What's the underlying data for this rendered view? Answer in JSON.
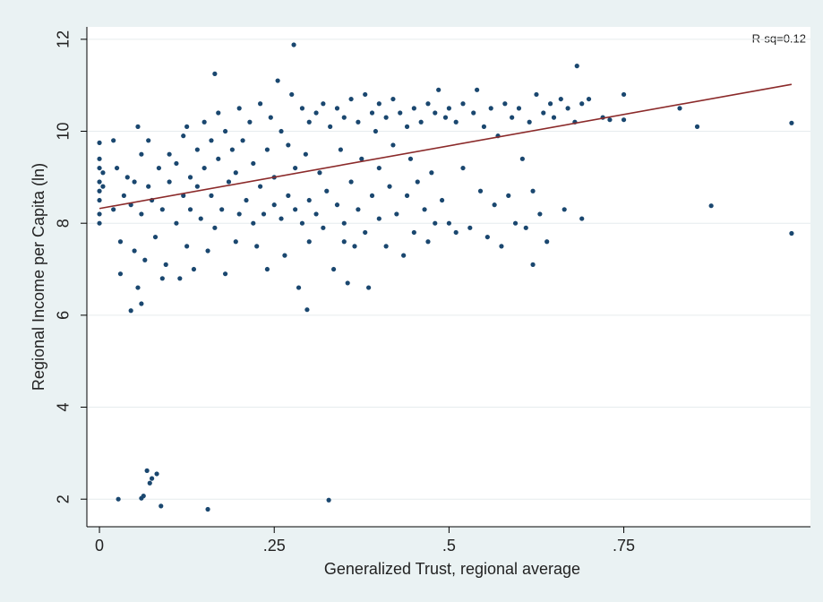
{
  "chart_data": {
    "type": "scatter",
    "xlabel": "Generalized Trust, regional average",
    "ylabel": "Regional Income per Capita (ln)",
    "annotation": "R-sq=0.12",
    "color": "#1a476f",
    "xlim": [
      -0.018,
      1.017
    ],
    "ylim": [
      1.4,
      12.27
    ],
    "xticks": [
      0,
      {
        "value": 0.25,
        "label": ".25"
      },
      {
        "value": 0.5,
        "label": ".5"
      },
      {
        "value": 0.75,
        "label": ".75"
      }
    ],
    "yticks": [
      2,
      4,
      6,
      8,
      10,
      12
    ],
    "grid": true,
    "fit_line": {
      "x": [
        0,
        0.99
      ],
      "y": [
        8.32,
        11.02
      ],
      "color": "#8b2a2a"
    },
    "x": [
      0.027,
      0.06,
      0.063,
      0.068,
      0.075,
      0.072,
      0.082,
      0.088,
      0.155,
      0.328,
      0.297,
      0.045,
      0.06,
      0.165,
      0.278,
      0.683,
      0.855,
      0.875,
      0.99,
      0.99,
      0.83,
      0.75,
      0.62,
      0,
      0,
      0,
      0,
      0,
      0,
      0,
      0,
      0.005,
      0.005,
      0.02,
      0.025,
      0.02,
      0.03,
      0.03,
      0.035,
      0.04,
      0.045,
      0.05,
      0.05,
      0.055,
      0.055,
      0.06,
      0.06,
      0.065,
      0.07,
      0.07,
      0.075,
      0.08,
      0.085,
      0.09,
      0.09,
      0.095,
      0.1,
      0.1,
      0.11,
      0.11,
      0.115,
      0.12,
      0.12,
      0.125,
      0.13,
      0.13,
      0.135,
      0.14,
      0.14,
      0.145,
      0.15,
      0.15,
      0.155,
      0.16,
      0.16,
      0.165,
      0.17,
      0.175,
      0.18,
      0.18,
      0.185,
      0.19,
      0.195,
      0.2,
      0.2,
      0.195,
      0.17,
      0.125,
      0.205,
      0.21,
      0.215,
      0.22,
      0.22,
      0.225,
      0.23,
      0.23,
      0.235,
      0.24,
      0.24,
      0.245,
      0.25,
      0.25,
      0.255,
      0.26,
      0.26,
      0.265,
      0.27,
      0.27,
      0.275,
      0.28,
      0.28,
      0.285,
      0.29,
      0.29,
      0.295,
      0.3,
      0.3,
      0.3,
      0.31,
      0.31,
      0.315,
      0.32,
      0.32,
      0.325,
      0.33,
      0.335,
      0.34,
      0.34,
      0.345,
      0.35,
      0.35,
      0.355,
      0.36,
      0.36,
      0.365,
      0.37,
      0.37,
      0.375,
      0.38,
      0.38,
      0.385,
      0.39,
      0.39,
      0.395,
      0.4,
      0.4,
      0.4,
      0.35,
      0.41,
      0.41,
      0.415,
      0.42,
      0.42,
      0.425,
      0.43,
      0.435,
      0.44,
      0.44,
      0.445,
      0.45,
      0.45,
      0.455,
      0.46,
      0.465,
      0.47,
      0.47,
      0.475,
      0.48,
      0.48,
      0.485,
      0.49,
      0.495,
      0.5,
      0.5,
      0.51,
      0.51,
      0.52,
      0.52,
      0.53,
      0.535,
      0.54,
      0.545,
      0.55,
      0.555,
      0.56,
      0.565,
      0.57,
      0.575,
      0.58,
      0.585,
      0.59,
      0.595,
      0.6,
      0.605,
      0.61,
      0.615,
      0.62,
      0.625,
      0.63,
      0.635,
      0.64,
      0.645,
      0.65,
      0.66,
      0.665,
      0.67,
      0.68,
      0.69,
      0.69,
      0.7,
      0.72,
      0.73,
      0.75
    ],
    "values": [
      2.0,
      2.02,
      2.07,
      2.62,
      2.45,
      2.35,
      2.55,
      1.85,
      1.78,
      1.98,
      6.12,
      6.1,
      6.25,
      11.25,
      11.88,
      11.42,
      10.1,
      8.38,
      10.18,
      7.78,
      10.5,
      10.8,
      7.1,
      9.75,
      9.4,
      9.2,
      8.9,
      8.7,
      8.5,
      8.2,
      8.0,
      8.8,
      9.1,
      9.8,
      9.2,
      8.3,
      7.6,
      6.9,
      8.6,
      9.0,
      8.4,
      8.9,
      7.4,
      10.1,
      6.6,
      9.5,
      8.2,
      7.2,
      9.8,
      8.8,
      8.5,
      7.7,
      9.2,
      6.8,
      8.3,
      7.1,
      8.9,
      9.5,
      8.0,
      9.3,
      6.8,
      8.6,
      9.9,
      7.5,
      9.0,
      8.3,
      7.0,
      9.6,
      8.8,
      8.1,
      10.2,
      9.2,
      7.4,
      8.6,
      9.8,
      7.9,
      9.4,
      8.3,
      10.0,
      6.9,
      8.9,
      9.6,
      7.6,
      10.5,
      8.2,
      9.1,
      10.4,
      10.1,
      9.8,
      8.5,
      10.2,
      8.0,
      9.3,
      7.5,
      10.6,
      8.8,
      8.2,
      9.6,
      7.0,
      10.3,
      8.4,
      9.0,
      11.1,
      8.1,
      10.0,
      7.3,
      9.7,
      8.6,
      10.8,
      8.3,
      9.2,
      6.6,
      10.5,
      8.0,
      9.5,
      10.2,
      8.5,
      7.6,
      10.4,
      8.2,
      9.1,
      10.6,
      7.9,
      8.7,
      10.1,
      7.0,
      10.5,
      8.4,
      9.6,
      10.3,
      8.0,
      6.7,
      10.7,
      8.9,
      7.5,
      10.2,
      8.3,
      9.4,
      10.8,
      7.8,
      6.6,
      10.4,
      8.6,
      10.0,
      10.6,
      8.1,
      9.2,
      7.6,
      10.3,
      7.5,
      8.8,
      10.7,
      9.7,
      8.2,
      10.4,
      7.3,
      10.1,
      8.6,
      9.4,
      10.5,
      7.8,
      8.9,
      10.2,
      8.3,
      10.6,
      7.6,
      9.1,
      10.4,
      8.0,
      10.9,
      8.5,
      10.3,
      10.5,
      8.0,
      10.2,
      7.8,
      10.6,
      9.2,
      7.9,
      10.4,
      10.9,
      8.7,
      10.1,
      7.7,
      10.5,
      8.4,
      9.9,
      7.5,
      10.6,
      8.6,
      10.3,
      8.0,
      10.5,
      9.4,
      7.9,
      10.2,
      8.7,
      10.8,
      8.2,
      10.4,
      7.6,
      10.6,
      10.3,
      10.7,
      8.3,
      10.5,
      10.2,
      8.1,
      10.6,
      10.7,
      10.3,
      10.25,
      10.25
    ]
  }
}
